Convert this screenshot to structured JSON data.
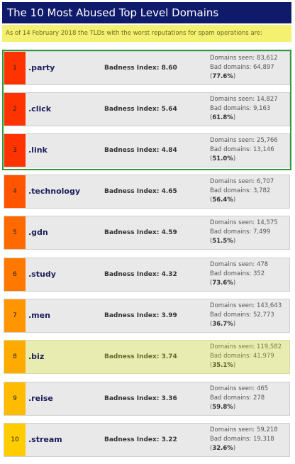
{
  "header": {
    "title": "The 10 Most Abused Top Level Domains"
  },
  "subheader": {
    "text": "As of 14 February 2018 the TLDs with the worst reputations for spam operations are:"
  },
  "labels": {
    "badness_prefix": "Badness Index: ",
    "seen_prefix": "Domains seen: ",
    "bad_prefix": "Bad domains: "
  },
  "rows": [
    {
      "rank": "1",
      "tld": ".party",
      "badness": "8.60",
      "seen": "83,612",
      "bad": "64,897",
      "pct": "77.6%",
      "color": "#ff3300"
    },
    {
      "rank": "2",
      "tld": ".click",
      "badness": "5.64",
      "seen": "14,827",
      "bad": "9,163",
      "pct": "61.8%",
      "color": "#ff3300"
    },
    {
      "rank": "3",
      "tld": ".link",
      "badness": "4.84",
      "seen": "25,766",
      "bad": "13,146",
      "pct": "51.0%",
      "color": "#ff3300"
    },
    {
      "rank": "4",
      "tld": ".technology",
      "badness": "4.65",
      "seen": "6,707",
      "bad": "3,782",
      "pct": "56.4%",
      "color": "#ff5500"
    },
    {
      "rank": "5",
      "tld": ".gdn",
      "badness": "4.59",
      "seen": "14,575",
      "bad": "7,499",
      "pct": "51.5%",
      "color": "#ff6a00"
    },
    {
      "rank": "6",
      "tld": ".study",
      "badness": "4.32",
      "seen": "478",
      "bad": "352",
      "pct": "73.6%",
      "color": "#ff7800"
    },
    {
      "rank": "7",
      "tld": ".men",
      "badness": "3.99",
      "seen": "143,643",
      "bad": "52,773",
      "pct": "36.7%",
      "color": "#ff9500"
    },
    {
      "rank": "8",
      "tld": ".biz",
      "badness": "3.74",
      "seen": "119,582",
      "bad": "41,979",
      "pct": "35.1%",
      "color": "#ffaa00",
      "highlight": true
    },
    {
      "rank": "9",
      "tld": ".reise",
      "badness": "3.36",
      "seen": "465",
      "bad": "278",
      "pct": "59.8%",
      "color": "#ffbb00"
    },
    {
      "rank": "10",
      "tld": ".stream",
      "badness": "3.22",
      "seen": "59,218",
      "bad": "19,318",
      "pct": "32.6%",
      "color": "#ffcc00"
    }
  ]
}
